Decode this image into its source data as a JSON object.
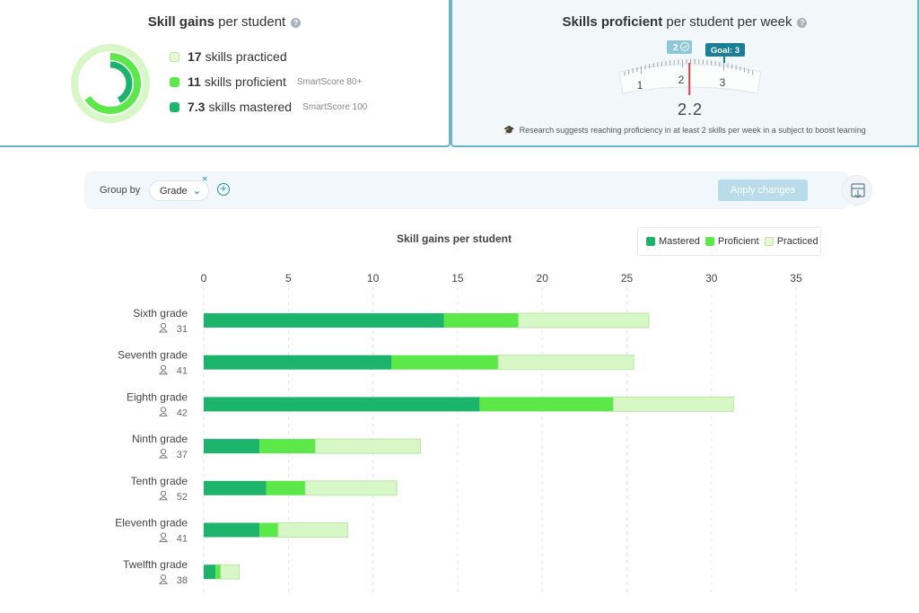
{
  "summary": {
    "title_bold": "Skill gains",
    "title_rest": " per student",
    "rows": [
      {
        "value": "17",
        "label": "skills practiced",
        "sub": "",
        "color": "#d8f7c6"
      },
      {
        "value": "11",
        "label": "skills proficient",
        "sub": "SmartScore 80+",
        "color": "#5de84a"
      },
      {
        "value": "7.3",
        "label": "skills mastered",
        "sub": "SmartScore 100",
        "color": "#1cb36a"
      }
    ]
  },
  "proficiency": {
    "title_bold": "Skills proficient",
    "title_rest": " per student per week",
    "current_badge": "2",
    "goal_badge": "Goal: 3",
    "scale_labels": [
      "1",
      "2",
      "3"
    ],
    "value": "2.2",
    "gauge_value": 2.2,
    "note": "Research suggests reaching proficiency in at least 2 skills per week in a subject to boost learning"
  },
  "toolbar": {
    "group_by_label": "Group by",
    "grade_label": "Grade",
    "apply_label": "Apply changes"
  },
  "colors": {
    "mastered": "#1cb36a",
    "proficient": "#5de84a",
    "practiced": "#d8f7c6",
    "accent": "#1b8fb5"
  },
  "chart_data": {
    "type": "bar",
    "orientation": "horizontal",
    "stacked": true,
    "title": "Skill gains per student",
    "categories": [
      "Sixth grade",
      "Seventh grade",
      "Eighth grade",
      "Ninth grade",
      "Tenth grade",
      "Eleventh grade",
      "Twelfth grade"
    ],
    "student_counts": [
      "31",
      "41",
      "42",
      "37",
      "52",
      "41",
      "38"
    ],
    "series": [
      {
        "name": "Mastered",
        "values": [
          14.2,
          11.1,
          16.3,
          3.3,
          3.7,
          3.3,
          0.7
        ]
      },
      {
        "name": "Proficient",
        "values": [
          4.4,
          6.3,
          7.9,
          3.3,
          2.3,
          1.1,
          0.3
        ]
      },
      {
        "name": "Practiced",
        "values": [
          7.7,
          8.0,
          7.1,
          6.2,
          5.4,
          4.1,
          1.1
        ]
      }
    ],
    "xticks": [
      "0",
      "5",
      "10",
      "15",
      "20",
      "25",
      "30",
      "35"
    ],
    "xlim": [
      0,
      35
    ],
    "grid": true,
    "legend_position": "top-right"
  }
}
